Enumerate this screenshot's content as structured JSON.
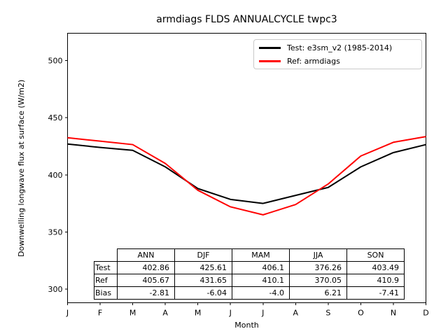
{
  "figure": {
    "background": "#ffffff",
    "text_color": "#000000",
    "axes_border_color": "#000000",
    "legend_border_color": "#c9c9c9"
  },
  "chart_data": {
    "type": "line",
    "title": "armdiags FLDS ANNUALCYCLE twpc3",
    "xlabel": "Month",
    "ylabel": "Downwelling longwave flux at surface (W/m2)",
    "x": [
      1,
      2,
      3,
      4,
      5,
      6,
      7,
      8,
      9,
      10,
      11,
      12
    ],
    "x_tick_labels": [
      "J",
      "F",
      "M",
      "A",
      "M",
      "J",
      "J",
      "A",
      "S",
      "O",
      "N",
      "D"
    ],
    "ylim": [
      288,
      524
    ],
    "yticks": [
      300,
      350,
      400,
      450,
      500
    ],
    "grid": false,
    "legend_position": "upper right",
    "series": [
      {
        "name": "Test: e3sm_v2 (1985-2014)",
        "color": "#000000",
        "values": [
          427.0,
          424.0,
          421.5,
          407.0,
          388.0,
          378.5,
          375.0,
          382.0,
          389.0,
          407.0,
          419.5,
          426.5
        ]
      },
      {
        "name": "Ref: armdiags",
        "color": "#ff0000",
        "values": [
          432.5,
          429.5,
          426.5,
          410.0,
          386.5,
          372.0,
          365.0,
          374.0,
          392.0,
          416.5,
          428.5,
          433.5
        ]
      }
    ],
    "table": {
      "columns": [
        "ANN",
        "DJF",
        "MAM",
        "JJA",
        "SON"
      ],
      "rows": [
        {
          "label": "Test",
          "values": [
            "402.86",
            "425.61",
            "406.1",
            "376.26",
            "403.49"
          ]
        },
        {
          "label": "Ref",
          "values": [
            "405.67",
            "431.65",
            "410.1",
            "370.05",
            "410.9"
          ]
        },
        {
          "label": "Bias",
          "values": [
            "-2.81",
            "-6.04",
            "-4.0",
            "6.21",
            "-7.41"
          ]
        }
      ]
    }
  }
}
